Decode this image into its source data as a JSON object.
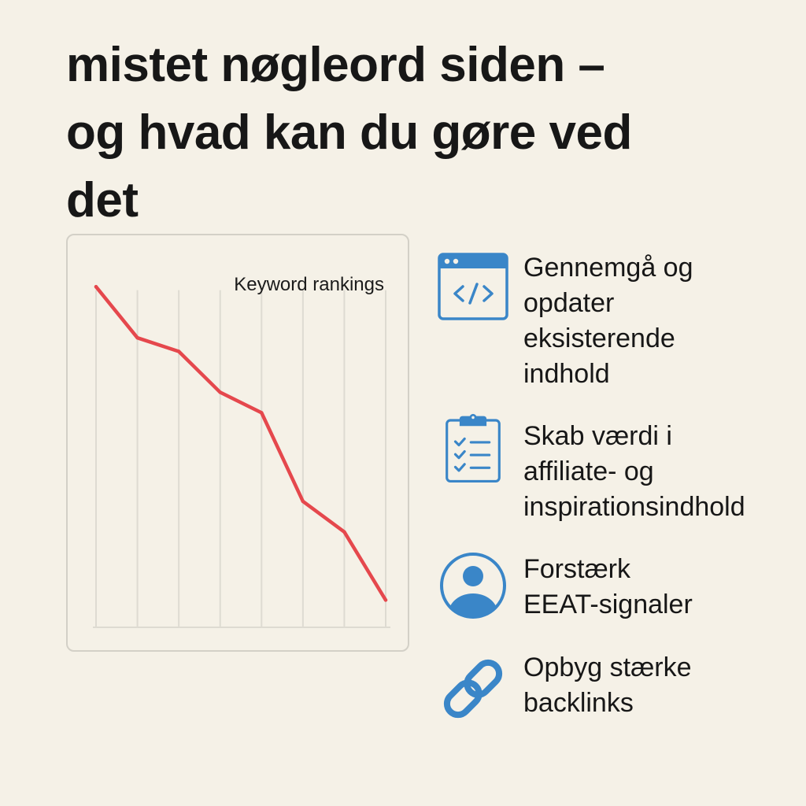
{
  "headline": {
    "line1": "mistet nøgleord siden –",
    "line2": "og hvad kan du gøre ved",
    "line3": "det"
  },
  "chart_data": {
    "type": "line",
    "title": "Keyword rankings",
    "xlabel": "",
    "ylabel": "",
    "x": [
      0,
      1,
      2,
      3,
      4,
      5,
      6,
      7
    ],
    "series": [
      {
        "values": [
          100,
          85,
          81,
          69,
          63,
          37,
          28,
          8
        ],
        "color": "#e5484d"
      }
    ],
    "ylim": [
      0,
      110
    ],
    "grid": "vertical",
    "legend": "none"
  },
  "tips": [
    {
      "icon": "code-window-icon",
      "text": "Gennemgå og\nopdater\neksisterende\nindhold"
    },
    {
      "icon": "clipboard-checklist-icon",
      "text": "Skab værdi i\naffiliate- og\ninspirationsindhold"
    },
    {
      "icon": "user-profile-icon",
      "text": "Forstærk\nEEAT-signaler"
    },
    {
      "icon": "link-chain-icon",
      "text": "Opbyg stærke\nbacklinks"
    }
  ],
  "colors": {
    "background": "#f5f1e7",
    "line": "#e5484d",
    "icon": "#3a86c8",
    "grid": "#dedbd2",
    "text": "#171717"
  }
}
